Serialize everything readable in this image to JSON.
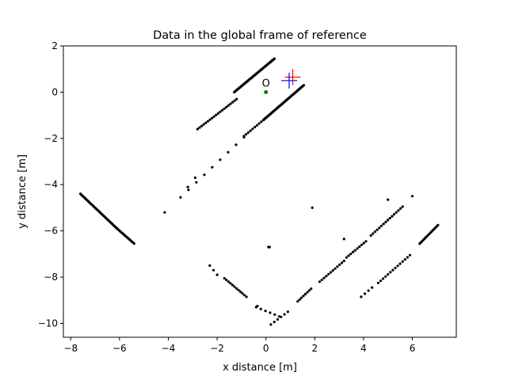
{
  "chart_data": {
    "type": "scatter",
    "title": "Data in the global frame of reference",
    "xlabel": "x distance [m]",
    "ylabel": "y distance [m]",
    "xlim": [
      -8.3,
      7.8
    ],
    "ylim": [
      -10.6,
      2.0
    ],
    "xticks": [
      -8,
      -6,
      -4,
      -2,
      0,
      2,
      4,
      6
    ],
    "yticks": [
      2,
      0,
      -2,
      -4,
      -6,
      -8,
      -10
    ],
    "xtick_labels": [
      "−8",
      "−6",
      "−4",
      "−2",
      "0",
      "2",
      "4",
      "6"
    ],
    "ytick_labels": [
      "2",
      "0",
      "−2",
      "−4",
      "−6",
      "−8",
      "−10"
    ],
    "grid": false,
    "origin": {
      "label": "O",
      "x": 0.0,
      "y": 0.0,
      "color": "#008000"
    },
    "markers": [
      {
        "shape": "cross",
        "x": 1.1,
        "y": 0.65,
        "color": "#ff0000"
      },
      {
        "shape": "cross",
        "x": 0.95,
        "y": 0.5,
        "color": "#0000ff"
      }
    ],
    "point_color": "#000000",
    "segments": [
      {
        "x1": -1.3,
        "y1": 0.0,
        "x2": 0.35,
        "y2": 1.45,
        "n": 60
      },
      {
        "x1": -2.8,
        "y1": -1.6,
        "x2": -1.2,
        "y2": -0.3,
        "n": 20
      },
      {
        "x1": -0.1,
        "y1": -1.2,
        "x2": 1.55,
        "y2": 0.3,
        "n": 55
      },
      {
        "x1": -0.9,
        "y1": -1.9,
        "x2": -0.1,
        "y2": -1.2,
        "n": 10
      },
      {
        "x1": -3.5,
        "y1": -4.55,
        "x2": -0.9,
        "y2": -1.95,
        "n": 9
      },
      {
        "x1": -7.6,
        "y1": -4.4,
        "x2": -6.1,
        "y2": -5.9,
        "n": 40
      },
      {
        "x1": -6.1,
        "y1": -5.9,
        "x2": -5.4,
        "y2": -6.55,
        "n": 18
      },
      {
        "x1": -2.3,
        "y1": -7.5,
        "x2": -2.0,
        "y2": -7.9,
        "n": 3
      },
      {
        "x1": -1.7,
        "y1": -8.05,
        "x2": -0.8,
        "y2": -8.85,
        "n": 12
      },
      {
        "x1": -0.4,
        "y1": -9.3,
        "x2": 0.55,
        "y2": -9.7,
        "n": 6
      },
      {
        "x1": 0.2,
        "y1": -10.05,
        "x2": 0.9,
        "y2": -9.5,
        "n": 6
      },
      {
        "x1": 1.3,
        "y1": -9.05,
        "x2": 1.85,
        "y2": -8.5,
        "n": 8
      },
      {
        "x1": 2.2,
        "y1": -8.2,
        "x2": 3.2,
        "y2": -7.3,
        "n": 12
      },
      {
        "x1": 3.3,
        "y1": -7.15,
        "x2": 4.1,
        "y2": -6.45,
        "n": 10
      },
      {
        "x1": 4.3,
        "y1": -6.2,
        "x2": 5.6,
        "y2": -4.95,
        "n": 16
      },
      {
        "x1": 3.9,
        "y1": -8.85,
        "x2": 4.35,
        "y2": -8.45,
        "n": 4
      },
      {
        "x1": 4.6,
        "y1": -8.25,
        "x2": 5.9,
        "y2": -7.05,
        "n": 14
      },
      {
        "x1": 6.3,
        "y1": -6.55,
        "x2": 7.05,
        "y2": -5.75,
        "n": 16
      }
    ],
    "points": [
      [
        -4.15,
        -5.2
      ],
      [
        -3.2,
        -4.1
      ],
      [
        -2.9,
        -3.7
      ],
      [
        1.9,
        -5.0
      ],
      [
        0.1,
        -6.7
      ],
      [
        0.15,
        -6.7
      ],
      [
        3.2,
        -6.35
      ],
      [
        5.0,
        -4.65
      ],
      [
        6.0,
        -4.5
      ],
      [
        -0.35,
        -9.25
      ]
    ]
  }
}
